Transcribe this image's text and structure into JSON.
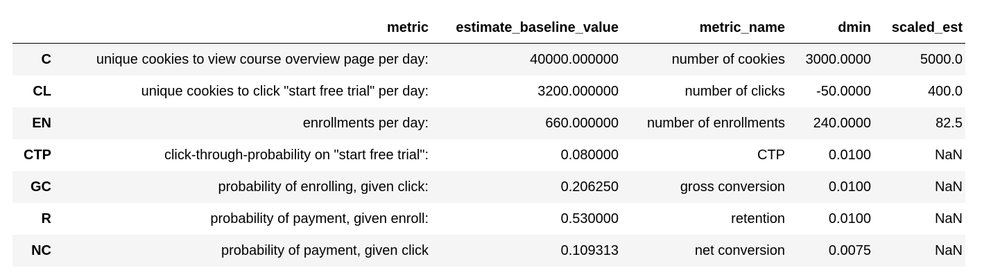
{
  "table": {
    "columns": [
      "",
      "metric",
      "estimate_baseline_value",
      "metric_name",
      "dmin",
      "scaled_est"
    ],
    "rows": [
      {
        "index": "C",
        "metric": "unique cookies to view course overview page per day:",
        "estimate_baseline_value": "40000.000000",
        "metric_name": "number of cookies",
        "dmin": "3000.0000",
        "scaled_est": "5000.0"
      },
      {
        "index": "CL",
        "metric": "unique cookies to click \"start free trial\" per day:",
        "estimate_baseline_value": "3200.000000",
        "metric_name": "number of clicks",
        "dmin": "-50.0000",
        "scaled_est": "400.0"
      },
      {
        "index": "EN",
        "metric": "enrollments per day:",
        "estimate_baseline_value": "660.000000",
        "metric_name": "number of enrollments",
        "dmin": "240.0000",
        "scaled_est": "82.5"
      },
      {
        "index": "CTP",
        "metric": "click-through-probability on \"start free trial\":",
        "estimate_baseline_value": "0.080000",
        "metric_name": "CTP",
        "dmin": "0.0100",
        "scaled_est": "NaN"
      },
      {
        "index": "GC",
        "metric": "probability of enrolling, given click:",
        "estimate_baseline_value": "0.206250",
        "metric_name": "gross conversion",
        "dmin": "0.0100",
        "scaled_est": "NaN"
      },
      {
        "index": "R",
        "metric": "probability of payment, given enroll:",
        "estimate_baseline_value": "0.530000",
        "metric_name": "retention",
        "dmin": "0.0100",
        "scaled_est": "NaN"
      },
      {
        "index": "NC",
        "metric": "probability of payment, given click",
        "estimate_baseline_value": "0.109313",
        "metric_name": "net conversion",
        "dmin": "0.0075",
        "scaled_est": "NaN"
      }
    ]
  },
  "colors": {
    "stripe": "#f5f5f5",
    "header_rule": "#000000",
    "text": "#000000"
  }
}
